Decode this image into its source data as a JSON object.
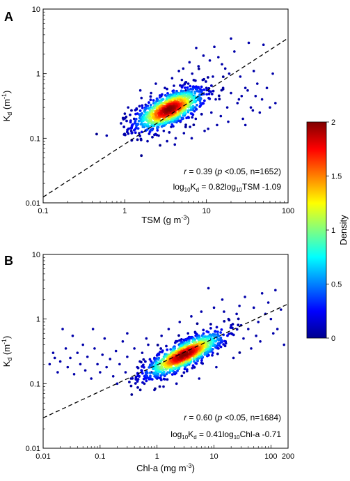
{
  "colorbar": {
    "label": "Density",
    "ticks": [
      "2",
      "1.5",
      "1",
      "0.5",
      "0"
    ],
    "colors": [
      "#00008f",
      "#0000ff",
      "#0080ff",
      "#00ffff",
      "#80ff80",
      "#ffff00",
      "#ff8000",
      "#ff0000",
      "#800000"
    ]
  },
  "chart_data": [
    {
      "panel_label": "A",
      "type": "scatter",
      "scale": "log-log",
      "xlabel_main": "TSM (g m",
      "xlabel_sup": "-3",
      "xlabel_end": ")",
      "ylabel_main": "K",
      "ylabel_sub": "d",
      "ylabel_rest": " (m",
      "ylabel_sup": "-1",
      "ylabel_end": ")",
      "xlim": [
        0.1,
        100
      ],
      "ylim": [
        0.01,
        10
      ],
      "xticks": [
        "0.1",
        "1",
        "10",
        "100"
      ],
      "yticks": [
        "0.01",
        "0.1",
        "1",
        "10"
      ],
      "stats": {
        "r_label": "r",
        "r_value": " = 0.39 (",
        "p_label": "p",
        "p_rest": " <0.05, n=1652)"
      },
      "equation": {
        "log": "log",
        "base": "10",
        "k": "K",
        "ksub": "d",
        "rest": " = 0.82log",
        "base2": "10",
        "end": "TSM -1.09"
      },
      "fit": {
        "slope": 0.82,
        "intercept": -1.09
      },
      "density_center": {
        "x": 3.5,
        "y": 0.28
      },
      "n": 1652,
      "points": [
        [
          0.6,
          0.11
        ],
        [
          0.9,
          0.17
        ],
        [
          1.0,
          0.24
        ],
        [
          1.1,
          0.3
        ],
        [
          1.2,
          0.13
        ],
        [
          1.3,
          0.2
        ],
        [
          1.4,
          0.28
        ],
        [
          1.5,
          0.12
        ],
        [
          1.6,
          0.42
        ],
        [
          1.7,
          0.16
        ],
        [
          1.8,
          0.33
        ],
        [
          1.9,
          0.09
        ],
        [
          2.0,
          0.22
        ],
        [
          2.1,
          0.5
        ],
        [
          2.2,
          0.14
        ],
        [
          2.3,
          0.31
        ],
        [
          2.5,
          0.19
        ],
        [
          2.6,
          0.11
        ],
        [
          2.8,
          0.45
        ],
        [
          3.0,
          0.13
        ],
        [
          3.1,
          0.6
        ],
        [
          3.3,
          0.09
        ],
        [
          3.5,
          0.4
        ],
        [
          3.7,
          0.15
        ],
        [
          4.0,
          0.65
        ],
        [
          4.2,
          0.1
        ],
        [
          4.5,
          0.5
        ],
        [
          4.8,
          0.18
        ],
        [
          5.0,
          0.8
        ],
        [
          5.3,
          0.12
        ],
        [
          5.6,
          0.55
        ],
        [
          6.0,
          0.7
        ],
        [
          6.3,
          0.15
        ],
        [
          6.7,
          1.0
        ],
        [
          7.0,
          0.45
        ],
        [
          7.4,
          0.2
        ],
        [
          8.0,
          1.3
        ],
        [
          8.5,
          0.35
        ],
        [
          9.0,
          0.8
        ],
        [
          9.5,
          0.13
        ],
        [
          10,
          0.6
        ],
        [
          11,
          1.6
        ],
        [
          11.5,
          0.25
        ],
        [
          12,
          0.9
        ],
        [
          13,
          0.4
        ],
        [
          14,
          1.8
        ],
        [
          15,
          0.22
        ],
        [
          16,
          0.6
        ],
        [
          17,
          1.2
        ],
        [
          18,
          0.3
        ],
        [
          20,
          0.5
        ],
        [
          22,
          2.2
        ],
        [
          24,
          0.35
        ],
        [
          26,
          0.9
        ],
        [
          28,
          0.2
        ],
        [
          30,
          0.6
        ],
        [
          33,
          3.0
        ],
        [
          35,
          0.3
        ],
        [
          38,
          1.1
        ],
        [
          40,
          0.45
        ],
        [
          45,
          0.25
        ],
        [
          50,
          2.8
        ],
        [
          55,
          0.6
        ],
        [
          60,
          0.3
        ],
        [
          65,
          1.0
        ],
        [
          70,
          0.35
        ],
        [
          7.5,
          2.5
        ],
        [
          9.2,
          1.9
        ],
        [
          6.2,
          1.5
        ],
        [
          5.2,
          1.2
        ],
        [
          12.5,
          2.6
        ],
        [
          15.5,
          1.4
        ],
        [
          19,
          1.0
        ],
        [
          25,
          0.4
        ],
        [
          32,
          0.55
        ],
        [
          42,
          0.7
        ],
        [
          2.4,
          0.7
        ],
        [
          3.8,
          0.85
        ],
        [
          1.55,
          0.55
        ],
        [
          4.6,
          1.1
        ],
        [
          20,
          3.5
        ],
        [
          30,
          0.16
        ],
        [
          4.1,
          0.08
        ],
        [
          6.6,
          0.1
        ],
        [
          10.5,
          0.14
        ],
        [
          13.5,
          0.16
        ],
        [
          18.5,
          0.18
        ],
        [
          27,
          0.45
        ],
        [
          37,
          0.27
        ],
        [
          48,
          0.4
        ]
      ]
    },
    {
      "panel_label": "B",
      "type": "scatter",
      "scale": "log-log",
      "xlabel_main": "Chl-a (mg m",
      "xlabel_sup": "-3",
      "xlabel_end": ")",
      "ylabel_main": "K",
      "ylabel_sub": "d",
      "ylabel_rest": " (m",
      "ylabel_sup": "-1",
      "ylabel_end": ")",
      "xlim": [
        0.01,
        200
      ],
      "ylim": [
        0.01,
        10
      ],
      "xticks": [
        "0.01",
        "0.1",
        "1",
        "10",
        "100",
        "200"
      ],
      "yticks": [
        "0.01",
        "0.1",
        "1",
        "10"
      ],
      "stats": {
        "r_label": "r",
        "r_value": " = 0.60 (",
        "p_label": "p",
        "p_rest": " <0.05, n=1684)"
      },
      "equation": {
        "log": "log",
        "base": "10",
        "k": "K",
        "ksub": "d",
        "rest": " = 0.41log",
        "base2": "10",
        "end": "Chl-a -0.71"
      },
      "fit": {
        "slope": 0.41,
        "intercept": -0.71
      },
      "density_center": {
        "x": 3.0,
        "y": 0.28
      },
      "n": 1684,
      "points": [
        [
          0.013,
          0.2
        ],
        [
          0.015,
          0.3
        ],
        [
          0.018,
          0.15
        ],
        [
          0.02,
          0.22
        ],
        [
          0.022,
          0.7
        ],
        [
          0.025,
          0.35
        ],
        [
          0.027,
          0.18
        ],
        [
          0.03,
          0.25
        ],
        [
          0.033,
          0.55
        ],
        [
          0.035,
          0.14
        ],
        [
          0.04,
          0.3
        ],
        [
          0.045,
          0.2
        ],
        [
          0.05,
          0.4
        ],
        [
          0.055,
          0.16
        ],
        [
          0.06,
          0.26
        ],
        [
          0.07,
          0.12
        ],
        [
          0.08,
          0.35
        ],
        [
          0.09,
          0.2
        ],
        [
          0.1,
          0.15
        ],
        [
          0.11,
          0.28
        ],
        [
          0.12,
          0.5
        ],
        [
          0.13,
          0.18
        ],
        [
          0.15,
          0.24
        ],
        [
          0.17,
          0.13
        ],
        [
          0.19,
          0.32
        ],
        [
          0.2,
          0.1
        ],
        [
          0.22,
          0.2
        ],
        [
          0.25,
          0.45
        ],
        [
          0.28,
          0.15
        ],
        [
          0.3,
          0.26
        ],
        [
          0.35,
          0.12
        ],
        [
          0.4,
          0.35
        ],
        [
          0.45,
          0.18
        ],
        [
          0.5,
          0.22
        ],
        [
          0.55,
          0.3
        ],
        [
          0.6,
          0.1
        ],
        [
          0.7,
          0.4
        ],
        [
          0.8,
          0.15
        ],
        [
          0.9,
          0.25
        ],
        [
          1.0,
          0.12
        ],
        [
          1.2,
          0.55
        ],
        [
          1.4,
          0.18
        ],
        [
          1.6,
          0.7
        ],
        [
          2.0,
          0.15
        ],
        [
          2.5,
          0.9
        ],
        [
          3.0,
          0.2
        ],
        [
          4.0,
          1.1
        ],
        [
          5.0,
          0.25
        ],
        [
          6.0,
          1.3
        ],
        [
          7.0,
          0.3
        ],
        [
          8.0,
          3.0
        ],
        [
          9.0,
          0.5
        ],
        [
          10,
          1.5
        ],
        [
          12,
          0.35
        ],
        [
          14,
          2.0
        ],
        [
          16,
          0.45
        ],
        [
          18,
          1.0
        ],
        [
          20,
          0.6
        ],
        [
          25,
          1.2
        ],
        [
          30,
          0.8
        ],
        [
          35,
          2.2
        ],
        [
          40,
          0.7
        ],
        [
          50,
          1.5
        ],
        [
          60,
          0.9
        ],
        [
          70,
          2.5
        ],
        [
          80,
          1.2
        ],
        [
          100,
          1.0
        ],
        [
          120,
          2.8
        ],
        [
          130,
          0.7
        ],
        [
          150,
          1.4
        ],
        [
          170,
          0.4
        ],
        [
          1.3,
          0.09
        ],
        [
          2.2,
          0.1
        ],
        [
          0.9,
          0.08
        ],
        [
          5.5,
          0.12
        ],
        [
          11,
          0.18
        ],
        [
          22,
          0.25
        ],
        [
          45,
          0.35
        ],
        [
          0.075,
          0.7
        ],
        [
          0.016,
          0.25
        ],
        [
          0.3,
          0.6
        ],
        [
          0.65,
          0.5
        ],
        [
          3.5,
          0.6
        ],
        [
          15,
          1.3
        ],
        [
          28,
          1.6
        ],
        [
          55,
          0.55
        ],
        [
          90,
          1.8
        ],
        [
          110,
          0.6
        ],
        [
          65,
          0.45
        ],
        [
          33,
          0.5
        ]
      ]
    }
  ]
}
